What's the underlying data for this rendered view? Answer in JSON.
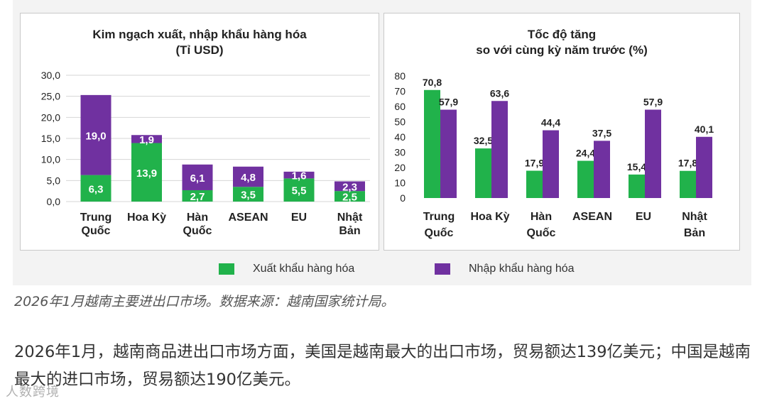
{
  "colors": {
    "export": "#21b24b",
    "import": "#7031a0",
    "axis_text": "#222222",
    "bar_label": "#ffffff"
  },
  "legend": {
    "export_label": "Xuất khẩu hàng hóa",
    "import_label": "Nhập khẩu hàng hóa"
  },
  "chart_data": [
    {
      "type": "bar",
      "stacked": true,
      "title_line1": "Kim ngạch xuất, nhập khẩu hàng hóa",
      "title_line2": "(Tỉ USD)",
      "categories": [
        [
          "Trung",
          "Quốc"
        ],
        [
          "Hoa Kỳ"
        ],
        [
          "Hàn",
          "Quốc"
        ],
        [
          "ASEAN"
        ],
        [
          "EU"
        ],
        [
          "Nhật",
          "Bản"
        ]
      ],
      "series": [
        {
          "name": "Xuất khẩu hàng hóa",
          "values": [
            6.3,
            13.9,
            2.7,
            3.5,
            5.5,
            2.5
          ],
          "labels": [
            "6,3",
            "13,9",
            "2,7",
            "3,5",
            "5,5",
            "2,5"
          ]
        },
        {
          "name": "Nhập khẩu hàng hóa",
          "values": [
            19.0,
            1.9,
            6.1,
            4.8,
            1.6,
            2.3
          ],
          "labels": [
            "19,0",
            "1,9",
            "6,1",
            "4,8",
            "1,6",
            "2,3"
          ]
        }
      ],
      "ylim": [
        0,
        30
      ],
      "yticks": [
        "0,0",
        "5,0",
        "10,0",
        "15,0",
        "20,0",
        "25,0",
        "30,0"
      ],
      "grid": true,
      "legend_position": "bottom"
    },
    {
      "type": "bar",
      "stacked": false,
      "title_line1": "Tốc độ tăng",
      "title_line2": "so với cùng kỳ năm trước (%)",
      "categories": [
        [
          "Trung",
          "Quốc"
        ],
        [
          "Hoa Kỳ"
        ],
        [
          "Hàn",
          "Quốc"
        ],
        [
          "ASEAN"
        ],
        [
          "EU"
        ],
        [
          "Nhật",
          "Bản"
        ]
      ],
      "series": [
        {
          "name": "Xuất khẩu hàng hóa",
          "values": [
            70.8,
            32.5,
            17.9,
            24.4,
            15.4,
            17.8
          ],
          "labels": [
            "70,8",
            "32,5",
            "17,9",
            "24,4",
            "15,4",
            "17,8"
          ]
        },
        {
          "name": "Nhập khẩu hàng hóa",
          "values": [
            57.9,
            63.6,
            44.4,
            37.5,
            57.9,
            40.1
          ],
          "labels": [
            "57,9",
            "63,6",
            "44,4",
            "37,5",
            "57,9",
            "40,1"
          ]
        }
      ],
      "ylim": [
        0,
        80
      ],
      "yticks": [
        "0",
        "10",
        "20",
        "30",
        "40",
        "50",
        "60",
        "70",
        "80"
      ],
      "grid": false,
      "legend_position": "bottom"
    }
  ],
  "caption": "2026年1月越南主要进出口市场。数据来源：越南国家统计局。",
  "body_text": "2026年1月，越南商品进出口市场方面，美国是越南最大的出口市场，贸易额达139亿美元；中国是越南最大的进口市场，贸易额达190亿美元。",
  "watermark": "人数跨境"
}
